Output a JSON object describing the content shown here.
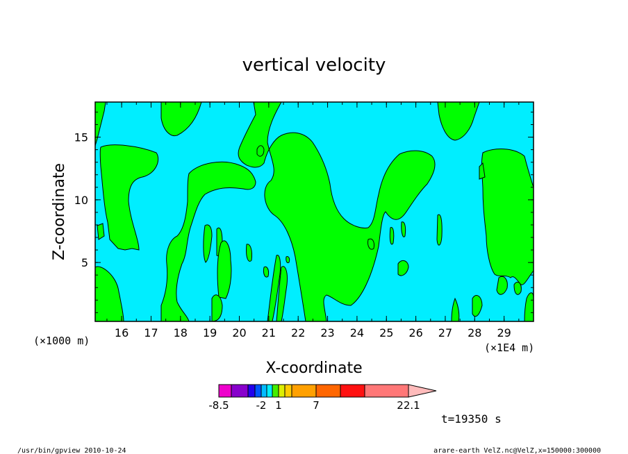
{
  "chart_data": {
    "type": "heatmap",
    "title": "vertical velocity",
    "xlabel": "X-coordinate",
    "ylabel": "Z-coordinate",
    "x_scale_note": "(×1E4 m)",
    "x_secondary_note": "(×1000 m)",
    "xlim": [
      15.1,
      30.0
    ],
    "ylim": [
      0.3,
      17.8
    ],
    "x_ticks": [
      "16",
      "17",
      "18",
      "19",
      "20",
      "21",
      "22",
      "23",
      "24",
      "25",
      "26",
      "27",
      "28",
      "29"
    ],
    "y_ticks": [
      "5",
      "10",
      "15"
    ],
    "background_color": "#00eeff",
    "region_color": "#00ff00",
    "colorbar": {
      "labels": [
        "-8.5",
        "-2",
        "1",
        "7",
        "22.1"
      ],
      "colors": [
        "#ee00cc",
        "#8800cc",
        "#2200ee",
        "#0055ff",
        "#00bbff",
        "#00eeff",
        "#44ee00",
        "#ddee00",
        "#ffcc00",
        "#ffa000",
        "#ff6600",
        "#ff1111",
        "#ff7777",
        "#ffbbbb"
      ],
      "extend": "right"
    },
    "time_label": "t=19350 s",
    "grid": false
  },
  "footer": {
    "left": "/usr/bin/gpview  2010-10-24",
    "right": "arare-earth_VelZ.nc@VelZ,x=150000:300000"
  }
}
